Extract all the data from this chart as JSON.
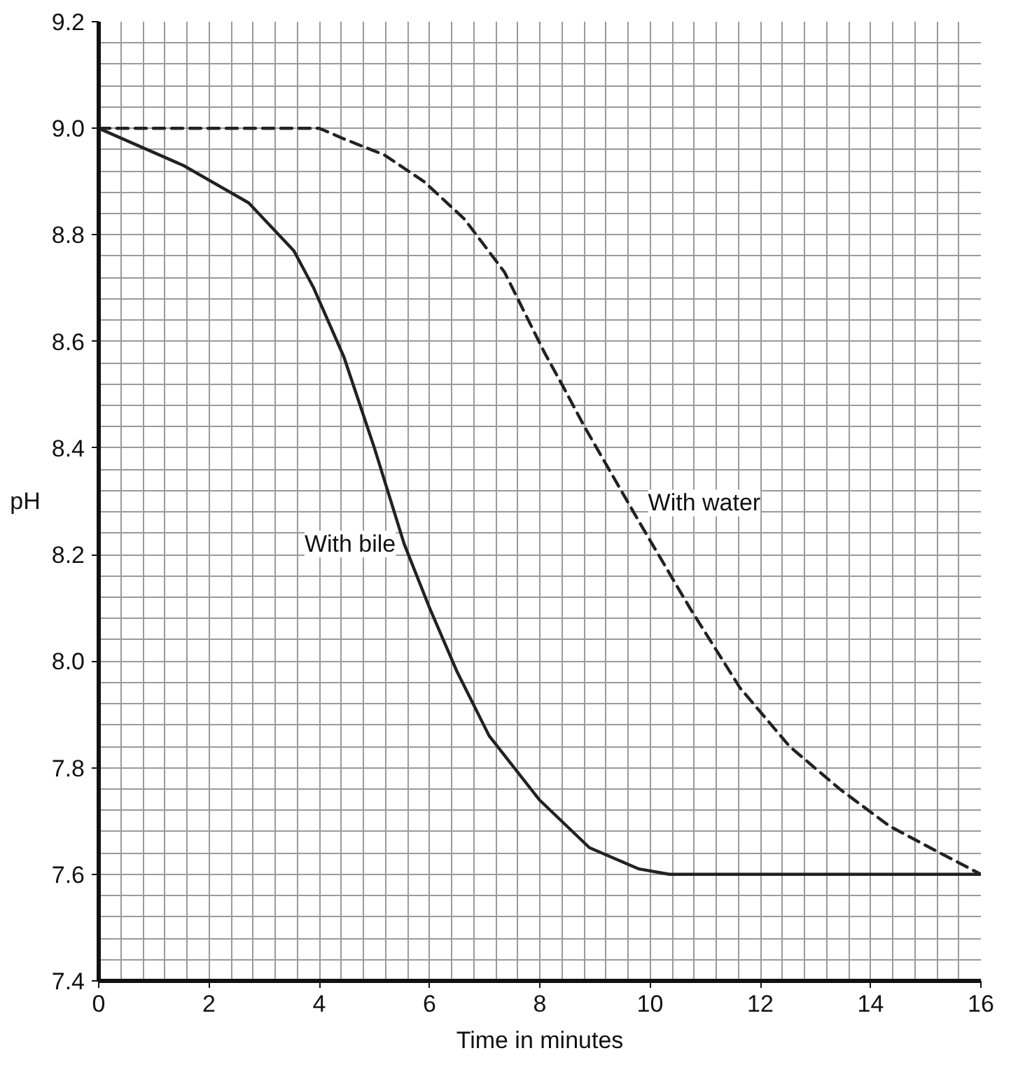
{
  "chart_data": {
    "type": "line",
    "xlabel": "Time in minutes",
    "ylabel": "pH",
    "xlim": [
      0,
      16
    ],
    "ylim": [
      7.4,
      9.2
    ],
    "grid": true,
    "marker": "none",
    "xticks": [
      0,
      {
        "value": 0.4,
        "label": null
      },
      {
        "value": 0.8,
        "label": null
      },
      {
        "value": 1.2,
        "label": null
      },
      {
        "value": 1.6,
        "label": null
      },
      2,
      {
        "value": 2.4,
        "label": null
      },
      {
        "value": 2.8,
        "label": null
      },
      {
        "value": 3.2,
        "label": null
      },
      {
        "value": 3.6,
        "label": null
      },
      4,
      {
        "value": 4.4,
        "label": null
      },
      {
        "value": 4.8,
        "label": null
      },
      {
        "value": 5.2,
        "label": null
      },
      {
        "value": 5.6,
        "label": null
      },
      6,
      {
        "value": 6.4,
        "label": null
      },
      {
        "value": 6.8,
        "label": null
      },
      {
        "value": 7.2,
        "label": null
      },
      {
        "value": 7.6,
        "label": null
      },
      8,
      {
        "value": 8.4,
        "label": null
      },
      {
        "value": 8.8,
        "label": null
      },
      {
        "value": 9.2,
        "label": null
      },
      {
        "value": 9.6,
        "label": null
      },
      10,
      {
        "value": 10.4,
        "label": null
      },
      {
        "value": 10.8,
        "label": null
      },
      {
        "value": 11.2,
        "label": null
      },
      {
        "value": 11.6,
        "label": null
      },
      12,
      {
        "value": 12.4,
        "label": null
      },
      {
        "value": 12.8,
        "label": null
      },
      {
        "value": 13.2,
        "label": null
      },
      {
        "value": 13.6,
        "label": null
      },
      14,
      {
        "value": 14.4,
        "label": null
      },
      {
        "value": 14.8,
        "label": null
      },
      {
        "value": 15.2,
        "label": null
      },
      {
        "value": 15.6,
        "label": null
      },
      16
    ],
    "yticks": [
      {
        "value": 7.4,
        "label": "7.4"
      },
      {
        "value": 7.44,
        "label": null
      },
      {
        "value": 7.48,
        "label": null
      },
      {
        "value": 7.52,
        "label": null
      },
      {
        "value": 7.56,
        "label": null
      },
      {
        "value": 7.6,
        "label": "7.6"
      },
      {
        "value": 7.64,
        "label": null
      },
      {
        "value": 7.68,
        "label": null
      },
      {
        "value": 7.72,
        "label": null
      },
      {
        "value": 7.76,
        "label": null
      },
      {
        "value": 7.8,
        "label": "7.8"
      },
      {
        "value": 7.84,
        "label": null
      },
      {
        "value": 7.88,
        "label": null
      },
      {
        "value": 7.92,
        "label": null
      },
      {
        "value": 7.96,
        "label": null
      },
      {
        "value": 8.0,
        "label": "8.0"
      },
      {
        "value": 8.04,
        "label": null
      },
      {
        "value": 8.08,
        "label": null
      },
      {
        "value": 8.12,
        "label": null
      },
      {
        "value": 8.16,
        "label": null
      },
      {
        "value": 8.2,
        "label": "8.2"
      },
      {
        "value": 8.24,
        "label": null
      },
      {
        "value": 8.28,
        "label": null
      },
      {
        "value": 8.32,
        "label": null
      },
      {
        "value": 8.36,
        "label": null
      },
      {
        "value": 8.4,
        "label": "8.4"
      },
      {
        "value": 8.44,
        "label": null
      },
      {
        "value": 8.48,
        "label": null
      },
      {
        "value": 8.52,
        "label": null
      },
      {
        "value": 8.56,
        "label": null
      },
      {
        "value": 8.6,
        "label": "8.6"
      },
      {
        "value": 8.64,
        "label": null
      },
      {
        "value": 8.68,
        "label": null
      },
      {
        "value": 8.72,
        "label": null
      },
      {
        "value": 8.76,
        "label": null
      },
      {
        "value": 8.8,
        "label": "8.8"
      },
      {
        "value": 8.84,
        "label": null
      },
      {
        "value": 8.88,
        "label": null
      },
      {
        "value": 8.92,
        "label": null
      },
      {
        "value": 8.96,
        "label": null
      },
      {
        "value": 9.0,
        "label": "9.0"
      },
      {
        "value": 9.04,
        "label": null
      },
      {
        "value": 9.08,
        "label": null
      },
      {
        "value": 9.12,
        "label": null
      },
      {
        "value": 9.16,
        "label": null
      },
      {
        "value": 9.2,
        "label": "9.2"
      }
    ],
    "series": [
      {
        "name": "With bile",
        "color": "#222222",
        "line_style": "solid",
        "x": [
          0,
          1.54,
          2.72,
          3.54,
          3.9,
          4.45,
          5.0,
          5.54,
          6.0,
          6.5,
          7.08,
          7.99,
          8.9,
          9.8,
          10.35,
          12,
          14,
          16
        ],
        "values": [
          9.0,
          8.93,
          8.86,
          8.77,
          8.7,
          8.57,
          8.4,
          8.22,
          8.1,
          7.98,
          7.86,
          7.74,
          7.65,
          7.61,
          7.6,
          7.6,
          7.6,
          7.6
        ]
      },
      {
        "name": "With water",
        "color": "#222222",
        "line_style": "dashed",
        "x": [
          0,
          2,
          4.0,
          4.45,
          5.18,
          5.9,
          6.63,
          7.36,
          8.08,
          8.45,
          8.81,
          9.81,
          10.72,
          11.63,
          12.53,
          13.44,
          14.35,
          15.26,
          16
        ],
        "values": [
          9.0,
          9.0,
          9.0,
          8.98,
          8.95,
          8.9,
          8.83,
          8.73,
          8.58,
          8.51,
          8.44,
          8.26,
          8.1,
          7.95,
          7.84,
          7.76,
          7.69,
          7.64,
          7.6
        ]
      }
    ]
  }
}
